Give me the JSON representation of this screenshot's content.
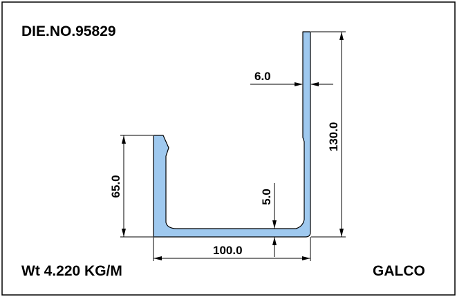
{
  "drawing": {
    "die_number": "DIE.NO.95829",
    "weight": "Wt 4.220 KG/M",
    "company": "GALCO",
    "colors": {
      "profile_fill": "#9fc9ef",
      "line": "#000000",
      "background": "#ffffff"
    },
    "dimensions": {
      "wall_thickness": "6.0",
      "overall_height": "130.0",
      "short_leg_height": "65.0",
      "base_thickness": "5.0",
      "overall_width": "100.0"
    }
  }
}
